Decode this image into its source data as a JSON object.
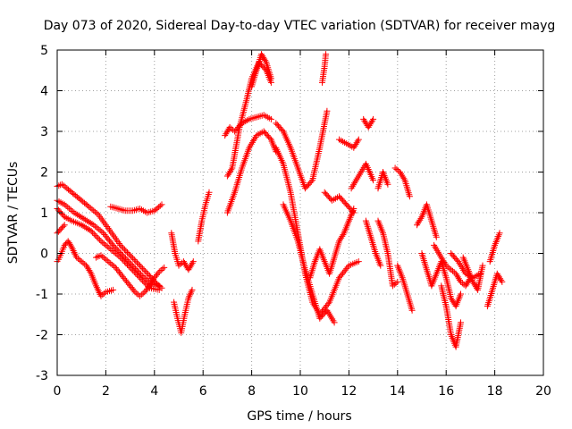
{
  "chart_data": {
    "type": "scatter",
    "title": "Day 073 of 2020, Sidereal Day-to-day VTEC variation (SDTVAR) for receiver mayg",
    "xlabel": "GPS time / hours",
    "ylabel": "SDTVAR / TECUs",
    "xlim": [
      0,
      20
    ],
    "ylim": [
      -3,
      5
    ],
    "x_ticks": [
      0,
      2,
      4,
      6,
      8,
      10,
      12,
      14,
      16,
      18,
      20
    ],
    "y_ticks": [
      -3,
      -2,
      -1,
      0,
      1,
      2,
      3,
      4,
      5
    ],
    "grid": true,
    "marker": "+",
    "colors": {
      "series": "#ff0000",
      "grid": "#a0a0a0",
      "axes": "#000000"
    },
    "series": [
      {
        "name": "SDTVAR",
        "tracks": [
          {
            "x": [
              0.0,
              0.2,
              0.4,
              0.7,
              1.0,
              1.3,
              1.7,
              2.0,
              2.3,
              2.6,
              3.0,
              3.4,
              3.8,
              4.1,
              4.3
            ],
            "y": [
              1.65,
              1.7,
              1.6,
              1.45,
              1.3,
              1.15,
              0.95,
              0.7,
              0.45,
              0.2,
              -0.05,
              -0.3,
              -0.55,
              -0.75,
              -0.85
            ]
          },
          {
            "x": [
              0.0,
              0.3,
              0.7,
              1.1,
              1.5,
              1.9,
              2.3,
              2.7,
              3.1,
              3.5,
              3.9,
              4.2
            ],
            "y": [
              1.3,
              1.2,
              1.0,
              0.85,
              0.7,
              0.5,
              0.2,
              -0.05,
              -0.3,
              -0.55,
              -0.75,
              -0.8
            ]
          },
          {
            "x": [
              0.0,
              0.3,
              0.6,
              1.0,
              1.4,
              1.8,
              2.2,
              2.6,
              3.0,
              3.4,
              3.8,
              4.2
            ],
            "y": [
              1.1,
              0.9,
              0.8,
              0.7,
              0.55,
              0.3,
              0.1,
              -0.1,
              -0.35,
              -0.6,
              -0.85,
              -0.9
            ]
          },
          {
            "x": [
              0.0,
              0.15,
              0.3
            ],
            "y": [
              0.5,
              0.6,
              0.7
            ]
          },
          {
            "x": [
              0.0,
              0.1,
              0.2,
              0.3,
              0.45,
              0.6,
              0.8,
              1.0,
              1.2,
              1.4,
              1.6,
              1.8,
              2.0,
              2.3
            ],
            "y": [
              -0.2,
              -0.1,
              0.05,
              0.2,
              0.3,
              0.15,
              -0.1,
              -0.2,
              -0.3,
              -0.5,
              -0.8,
              -1.05,
              -0.95,
              -0.9
            ]
          },
          {
            "x": [
              1.6,
              1.8,
              2.0,
              2.2,
              2.4,
              2.6,
              2.8,
              3.0,
              3.2,
              3.4,
              3.6,
              3.8,
              4.0,
              4.2,
              4.4
            ],
            "y": [
              -0.1,
              -0.05,
              -0.15,
              -0.25,
              -0.35,
              -0.5,
              -0.65,
              -0.8,
              -0.95,
              -1.05,
              -0.95,
              -0.8,
              -0.6,
              -0.45,
              -0.35
            ]
          },
          {
            "x": [
              2.2,
              2.5,
              2.8,
              3.1,
              3.4,
              3.7,
              4.0,
              4.3
            ],
            "y": [
              1.15,
              1.1,
              1.05,
              1.05,
              1.1,
              1.0,
              1.05,
              1.2
            ]
          },
          {
            "x": [
              4.7,
              4.85,
              5.0,
              5.2,
              5.4,
              5.6
            ],
            "y": [
              0.5,
              0.0,
              -0.3,
              -0.2,
              -0.4,
              -0.2
            ]
          },
          {
            "x": [
              4.8,
              4.95,
              5.1,
              5.25,
              5.4,
              5.55
            ],
            "y": [
              -1.2,
              -1.6,
              -1.95,
              -1.5,
              -1.1,
              -0.9
            ]
          },
          {
            "x": [
              5.8,
              5.95,
              6.1,
              6.25
            ],
            "y": [
              0.3,
              0.8,
              1.2,
              1.5
            ]
          },
          {
            "x": [
              6.9,
              7.1,
              7.3,
              7.6,
              7.9,
              8.2,
              8.5,
              8.8
            ],
            "y": [
              2.9,
              3.1,
              3.0,
              3.2,
              3.3,
              3.35,
              3.4,
              3.3
            ]
          },
          {
            "x": [
              7.0,
              7.2,
              7.5,
              7.8,
              8.0,
              8.3,
              8.6,
              8.8
            ],
            "y": [
              1.9,
              2.1,
              3.1,
              3.8,
              4.3,
              4.7,
              4.5,
              4.2
            ]
          },
          {
            "x": [
              8.0,
              8.2,
              8.4,
              8.6,
              8.8
            ],
            "y": [
              4.1,
              4.5,
              4.9,
              4.7,
              4.3
            ]
          },
          {
            "x": [
              7.0,
              7.3,
              7.6,
              7.9,
              8.2,
              8.5,
              8.8,
              9.0
            ],
            "y": [
              1.0,
              1.5,
              2.1,
              2.6,
              2.9,
              3.0,
              2.8,
              2.5
            ]
          },
          {
            "x": [
              9.0,
              9.3,
              9.6,
              9.9,
              10.2,
              10.5,
              10.8,
              11.1
            ],
            "y": [
              3.2,
              3.0,
              2.6,
              2.1,
              1.6,
              1.8,
              2.6,
              3.5
            ]
          },
          {
            "x": [
              10.9,
              11.0,
              11.05
            ],
            "y": [
              4.2,
              4.6,
              4.9
            ]
          },
          {
            "x": [
              9.0,
              9.3,
              9.6,
              9.9,
              10.2,
              10.5,
              10.8,
              11.2,
              11.6,
              12.0,
              12.4
            ],
            "y": [
              2.6,
              2.2,
              1.5,
              0.5,
              -0.5,
              -1.2,
              -1.5,
              -1.2,
              -0.6,
              -0.3,
              -0.2
            ]
          },
          {
            "x": [
              9.3,
              9.6,
              9.9,
              10.2,
              10.5,
              10.8,
              11.1,
              11.4
            ],
            "y": [
              1.2,
              0.8,
              0.3,
              -0.4,
              -1.0,
              -1.6,
              -1.4,
              -1.7
            ]
          },
          {
            "x": [
              10.4,
              10.6,
              10.8,
              11.0,
              11.2,
              11.4,
              11.6,
              11.8,
              12.0,
              12.2
            ],
            "y": [
              -0.6,
              -0.2,
              0.1,
              -0.2,
              -0.5,
              -0.1,
              0.3,
              0.5,
              0.8,
              1.1
            ]
          },
          {
            "x": [
              11.0,
              11.3,
              11.6,
              11.9,
              12.2
            ],
            "y": [
              1.5,
              1.3,
              1.4,
              1.2,
              1.0
            ]
          },
          {
            "x": [
              11.6,
              11.9,
              12.2,
              12.4
            ],
            "y": [
              2.8,
              2.7,
              2.6,
              2.8
            ]
          },
          {
            "x": [
              12.1,
              12.4,
              12.7,
              13.0
            ],
            "y": [
              1.6,
              1.9,
              2.2,
              1.8
            ]
          },
          {
            "x": [
              12.6,
              12.8,
              13.0
            ],
            "y": [
              3.3,
              3.1,
              3.3
            ]
          },
          {
            "x": [
              12.7,
              12.9,
              13.1,
              13.3
            ],
            "y": [
              0.8,
              0.4,
              0.0,
              -0.3
            ]
          },
          {
            "x": [
              13.2,
              13.4,
              13.6
            ],
            "y": [
              1.6,
              2.0,
              1.7
            ]
          },
          {
            "x": [
              13.2,
              13.4,
              13.6,
              13.8,
              14.0
            ],
            "y": [
              0.8,
              0.5,
              0.0,
              -0.8,
              -0.7
            ]
          },
          {
            "x": [
              13.9,
              14.1,
              14.3,
              14.5
            ],
            "y": [
              2.1,
              2.0,
              1.8,
              1.4
            ]
          },
          {
            "x": [
              14.0,
              14.2,
              14.4,
              14.6
            ],
            "y": [
              -0.3,
              -0.6,
              -1.0,
              -1.4
            ]
          },
          {
            "x": [
              14.8,
              15.0,
              15.2,
              15.4,
              15.6
            ],
            "y": [
              0.7,
              0.9,
              1.2,
              0.8,
              0.4
            ]
          },
          {
            "x": [
              15.0,
              15.2,
              15.4,
              15.6,
              15.8,
              16.0,
              16.2,
              16.4,
              16.6
            ],
            "y": [
              0.0,
              -0.4,
              -0.8,
              -0.5,
              -0.2,
              -0.6,
              -1.1,
              -1.3,
              -1.0
            ]
          },
          {
            "x": [
              15.5,
              15.8,
              16.0,
              16.2,
              16.4,
              16.6,
              16.8,
              17.0
            ],
            "y": [
              0.2,
              -0.1,
              -0.3,
              -0.4,
              -0.5,
              -0.7,
              -0.8,
              -0.6
            ]
          },
          {
            "x": [
              15.8,
              16.0,
              16.2,
              16.4,
              16.6
            ],
            "y": [
              -0.8,
              -1.3,
              -2.0,
              -2.3,
              -1.7
            ]
          },
          {
            "x": [
              16.2,
              16.5,
              16.8,
              17.1,
              17.4
            ],
            "y": [
              0.0,
              -0.2,
              -0.5,
              -0.6,
              -0.5
            ]
          },
          {
            "x": [
              16.7,
              16.9,
              17.1,
              17.3,
              17.5
            ],
            "y": [
              -0.1,
              -0.4,
              -0.7,
              -0.9,
              -0.3
            ]
          },
          {
            "x": [
              17.7,
              17.9,
              18.1,
              18.3
            ],
            "y": [
              -1.3,
              -0.9,
              -0.5,
              -0.7
            ]
          },
          {
            "x": [
              17.8,
              18.0,
              18.2
            ],
            "y": [
              -0.2,
              0.2,
              0.5
            ]
          }
        ]
      }
    ]
  }
}
